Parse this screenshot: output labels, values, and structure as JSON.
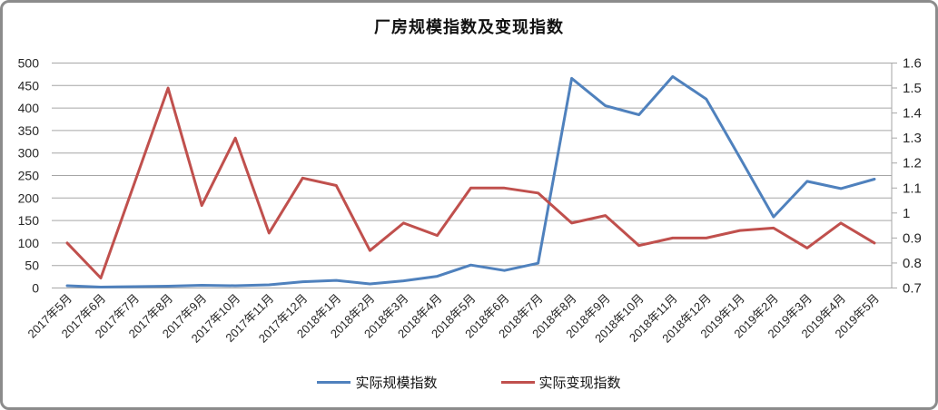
{
  "title": "厂房规模指数及变现指数",
  "colors": {
    "series_scale": "#4F81BD",
    "series_realization": "#C0504D",
    "grid": "#A6A6A6",
    "axis_line": "#A6A6A6",
    "tick_text": "#262626",
    "frame_border": "#8C8C8C",
    "background": "#FFFFFF"
  },
  "legend": {
    "items": [
      {
        "label": "实际规模指数",
        "color": "#4F81BD"
      },
      {
        "label": "实际变现指数",
        "color": "#C0504D"
      }
    ],
    "position": "bottom"
  },
  "chart_data": {
    "type": "line",
    "title": "厂房规模指数及变现指数",
    "xlabel": "",
    "ylabel": "",
    "grid": true,
    "legend_position": "bottom",
    "categories": [
      "2017年5月",
      "2017年6月",
      "2017年7月",
      "2017年8月",
      "2017年9月",
      "2017年10月",
      "2017年11月",
      "2017年12月",
      "2018年1月",
      "2018年2月",
      "2018年3月",
      "2018年4月",
      "2018年5月",
      "2018年6月",
      "2018年7月",
      "2018年8月",
      "2018年9月",
      "2018年10月",
      "2018年11月",
      "2018年12月",
      "2019年1月",
      "2019年2月",
      "2019年3月",
      "2019年4月",
      "2019年5月"
    ],
    "series": [
      {
        "name": "实际规模指数",
        "axis": "left",
        "color": "#4F81BD",
        "values": [
          5,
          2,
          3,
          4,
          6,
          5,
          7,
          14,
          17,
          9,
          16,
          26,
          51,
          39,
          55,
          466,
          405,
          385,
          470,
          420,
          290,
          158,
          237,
          221,
          242
        ]
      },
      {
        "name": "实际变现指数",
        "axis": "right",
        "color": "#C0504D",
        "values": [
          0.88,
          0.74,
          1.12,
          1.5,
          1.03,
          1.3,
          0.92,
          1.14,
          1.11,
          0.85,
          0.96,
          0.91,
          1.1,
          1.1,
          1.08,
          0.96,
          0.99,
          0.87,
          0.9,
          0.9,
          0.93,
          0.94,
          0.86,
          0.96,
          0.88
        ]
      }
    ],
    "left_axis": {
      "min": 0,
      "max": 500,
      "step": 50,
      "ticks": [
        "500",
        "450",
        "400",
        "350",
        "300",
        "250",
        "200",
        "150",
        "100",
        "50",
        "0"
      ]
    },
    "right_axis": {
      "min": 0.7,
      "max": 1.6,
      "step": 0.1,
      "ticks": [
        "1.6",
        "1.5",
        "1.4",
        "1.3",
        "1.2",
        "1.1",
        "1",
        "0.9",
        "0.8",
        "0.7"
      ]
    }
  }
}
